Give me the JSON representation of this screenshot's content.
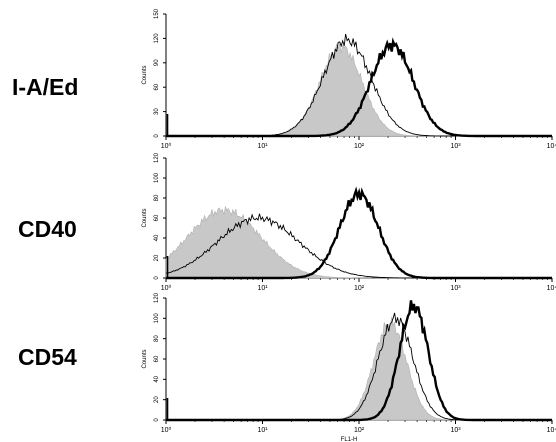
{
  "chart_data": [
    {
      "type": "area",
      "row_label": "I-A/Ed",
      "ylabel": "Counts",
      "xlabel": "",
      "x_scale": "log",
      "xlim": [
        1,
        10000
      ],
      "ylim": [
        0,
        150
      ],
      "x_tick_labels": [
        "10⁰",
        "10¹",
        "10²",
        "10³",
        "10⁴"
      ],
      "y_ticks": [
        0,
        30,
        60,
        90,
        120,
        150
      ],
      "series": [
        {
          "style": "gray-filled",
          "peak_x": 65,
          "peak_y": 110,
          "width_decades": 0.22
        },
        {
          "style": "thin-line",
          "peak_x": 75,
          "peak_y": 118,
          "width_decades": 0.25
        },
        {
          "style": "thick-line",
          "peak_x": 220,
          "peak_y": 112,
          "width_decades": 0.22
        }
      ]
    },
    {
      "type": "area",
      "row_label": "CD40",
      "ylabel": "Counts",
      "xlabel": "",
      "x_scale": "log",
      "xlim": [
        1,
        10000
      ],
      "ylim": [
        0,
        120
      ],
      "x_tick_labels": [
        "10⁰",
        "10¹",
        "10²",
        "10³",
        "10⁴"
      ],
      "y_ticks": [
        0,
        20,
        40,
        60,
        80,
        100,
        120
      ],
      "series": [
        {
          "style": "gray-filled",
          "peak_x": 4,
          "peak_y": 68,
          "width_decades": 0.38
        },
        {
          "style": "thin-line",
          "peak_x": 9,
          "peak_y": 60,
          "width_decades": 0.42
        },
        {
          "style": "thick-line",
          "peak_x": 100,
          "peak_y": 84,
          "width_decades": 0.2
        }
      ]
    },
    {
      "type": "area",
      "row_label": "CD54",
      "ylabel": "Counts",
      "xlabel": "FL1-H",
      "x_scale": "log",
      "xlim": [
        1,
        10000
      ],
      "ylim": [
        0,
        120
      ],
      "x_tick_labels": [
        "10⁰",
        "10¹",
        "10²",
        "10³",
        "10⁴"
      ],
      "y_ticks": [
        0,
        20,
        40,
        60,
        80,
        100,
        120
      ],
      "series": [
        {
          "style": "gray-filled",
          "peak_x": 210,
          "peak_y": 96,
          "width_decades": 0.17
        },
        {
          "style": "thin-line",
          "peak_x": 240,
          "peak_y": 100,
          "width_decades": 0.18
        },
        {
          "style": "thick-line",
          "peak_x": 370,
          "peak_y": 112,
          "width_decades": 0.15
        }
      ]
    }
  ],
  "colors": {
    "fill": "#c8c8c8",
    "line": "#000000"
  }
}
